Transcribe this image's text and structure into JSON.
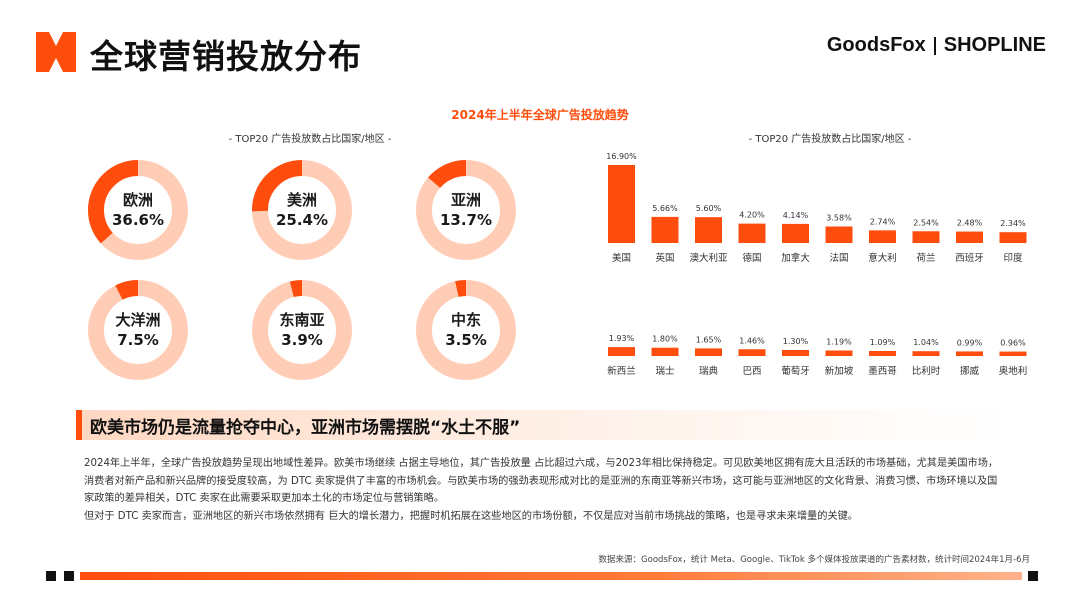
{
  "header": {
    "title": "全球营销投放分布"
  },
  "brand": {
    "goodsfox": "GoodsFox",
    "shopline": "SHOPLINE"
  },
  "section_title": "2024年上半年全球广告投放趋势",
  "left_subtitle": "- TOP20 广告投放数占比国家/地区 -",
  "right_subtitle": "- TOP20 广告投放数占比国家/地区 -",
  "colors": {
    "accent": "#ff4d0d",
    "ring": "#ffcdb5"
  },
  "headline": "欧美市场仍是流量抢夺中心，亚洲市场需摆脱“水土不服”",
  "body": {
    "p1": "2024年上半年，全球广告投放趋势呈现出地域性差异。欧美市场继续 占据主导地位，其广告投放量 占比超过六成，与2023年相比保持稳定。可见欧美地区拥有庞大且活跃的市场基础，尤其是美国市场，消费者对新产品和新兴品牌的接受度较高，为 DTC 卖家提供了丰富的市场机会。与欧美市场的强劲表现形成对比的是亚洲的东南亚等新兴市场，这可能与亚洲地区的文化背景、消费习惯、市场环境以及国家政策的差异相关，DTC 卖家在此需要采取更加本土化的市场定位与营销策略。",
    "p2": "但对于 DTC 卖家而言，亚洲地区的新兴市场依然拥有 巨大的增长潜力，把握时机拓展在这些地区的市场份额，不仅是应对当前市场挑战的策略，也是寻求未来增量的关键。"
  },
  "source": "数据来源：GoodsFox，统计 Meta、Google、TikTok 多个媒体投放渠道的广告素材数，统计时间2024年1月-6月",
  "donuts": [
    {
      "region": "欧洲",
      "pct_label": "36.6%",
      "value": 36.6
    },
    {
      "region": "美洲",
      "pct_label": "25.4%",
      "value": 25.4
    },
    {
      "region": "亚洲",
      "pct_label": "13.7%",
      "value": 13.7
    },
    {
      "region": "大洋洲",
      "pct_label": "7.5%",
      "value": 7.5
    },
    {
      "region": "东南亚",
      "pct_label": "3.9%",
      "value": 3.9
    },
    {
      "region": "中东",
      "pct_label": "3.5%",
      "value": 3.5
    }
  ],
  "chart_data": [
    {
      "type": "pie",
      "title": "- TOP20 广告投放数占比国家/地区 -",
      "categories": [
        "欧洲",
        "美洲",
        "亚洲",
        "大洋洲",
        "东南亚",
        "中东"
      ],
      "values": [
        36.6,
        25.4,
        13.7,
        7.5,
        3.9,
        3.5
      ]
    },
    {
      "type": "bar",
      "title": "- TOP20 广告投放数占比国家/地区 -",
      "row1": {
        "categories": [
          "美国",
          "英国",
          "澳大利亚",
          "德国",
          "加拿大",
          "法国",
          "意大利",
          "荷兰",
          "西班牙",
          "印度"
        ],
        "values": [
          16.9,
          5.66,
          5.6,
          4.2,
          4.14,
          3.58,
          2.74,
          2.54,
          2.48,
          2.34
        ],
        "labels": [
          "16.90%",
          "5.66%",
          "5.60%",
          "4.20%",
          "4.14%",
          "3.58%",
          "2.74%",
          "2.54%",
          "2.48%",
          "2.34%"
        ]
      },
      "row2": {
        "categories": [
          "新西兰",
          "瑞士",
          "瑞典",
          "巴西",
          "葡萄牙",
          "新加坡",
          "墨西哥",
          "比利时",
          "挪威",
          "奥地利"
        ],
        "values": [
          1.93,
          1.8,
          1.65,
          1.46,
          1.3,
          1.19,
          1.09,
          1.04,
          0.99,
          0.96
        ],
        "labels": [
          "1.93%",
          "1.80%",
          "1.65%",
          "1.46%",
          "1.30%",
          "1.19%",
          "1.09%",
          "1.04%",
          "0.99%",
          "0.96%"
        ]
      }
    }
  ]
}
